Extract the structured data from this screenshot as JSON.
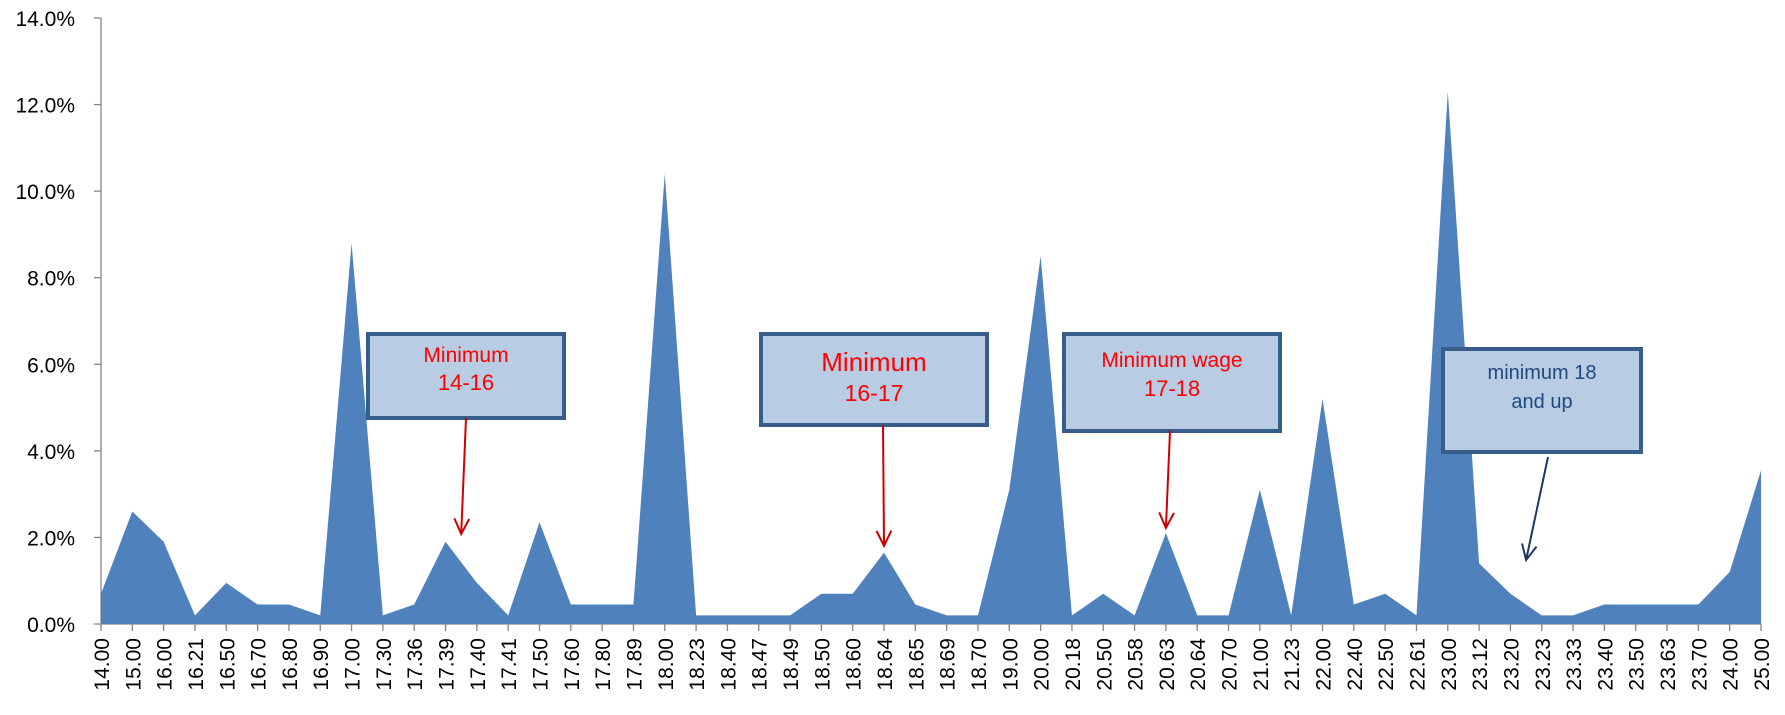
{
  "chart_data": {
    "type": "area",
    "title": "",
    "xlabel": "",
    "ylabel": "",
    "ylim": [
      0,
      14
    ],
    "y_ticks": [
      "0.0%",
      "2.0%",
      "4.0%",
      "6.0%",
      "8.0%",
      "10.0%",
      "12.0%",
      "14.0%"
    ],
    "grid": false,
    "legend": "none",
    "fill_color": "#4F81BD",
    "categories": [
      "14.00",
      "15.00",
      "16.00",
      "16.21",
      "16.50",
      "16.70",
      "16.80",
      "16.90",
      "17.00",
      "17.30",
      "17.36",
      "17.39",
      "17.40",
      "17.41",
      "17.50",
      "17.60",
      "17.80",
      "17.89",
      "18.00",
      "18.23",
      "18.40",
      "18.47",
      "18.49",
      "18.50",
      "18.60",
      "18.64",
      "18.65",
      "18.69",
      "18.70",
      "19.00",
      "20.00",
      "20.18",
      "20.50",
      "20.58",
      "20.63",
      "20.64",
      "20.70",
      "21.00",
      "21.23",
      "22.00",
      "22.40",
      "22.50",
      "22.61",
      "23.00",
      "23.12",
      "23.20",
      "23.23",
      "23.33",
      "23.40",
      "23.50",
      "23.63",
      "23.70",
      "24.00",
      "25.00"
    ],
    "values": [
      0.7,
      2.6,
      1.9,
      0.2,
      0.95,
      0.45,
      0.45,
      0.2,
      8.8,
      0.2,
      0.45,
      1.9,
      0.95,
      0.2,
      2.35,
      0.45,
      0.45,
      0.45,
      10.4,
      0.2,
      0.2,
      0.2,
      0.2,
      0.7,
      0.7,
      1.65,
      0.45,
      0.2,
      0.2,
      3.1,
      8.5,
      0.2,
      0.7,
      0.2,
      2.1,
      0.2,
      0.2,
      3.1,
      0.2,
      5.2,
      0.45,
      0.7,
      0.2,
      12.3,
      1.4,
      0.7,
      0.2,
      0.2,
      0.45,
      0.45,
      0.45,
      0.45,
      1.2,
      3.55
    ],
    "annotations": [
      {
        "lines": [
          "Minimum",
          "14-16"
        ],
        "target": 11.5,
        "color": "#FF0000",
        "arrow_color": "#CC0000"
      },
      {
        "lines": [
          "Minimum",
          "16-17"
        ],
        "target": 25,
        "color": "#FF0000",
        "arrow_color": "#CC0000"
      },
      {
        "lines": [
          "Minimum wage",
          "17-18"
        ],
        "target": 34,
        "color": "#FF0000",
        "arrow_color": "#CC0000"
      },
      {
        "lines": [
          "minimum 18",
          "and up"
        ],
        "target": 45.5,
        "color": "#1F497D",
        "arrow_color": "#1F3864"
      }
    ]
  }
}
